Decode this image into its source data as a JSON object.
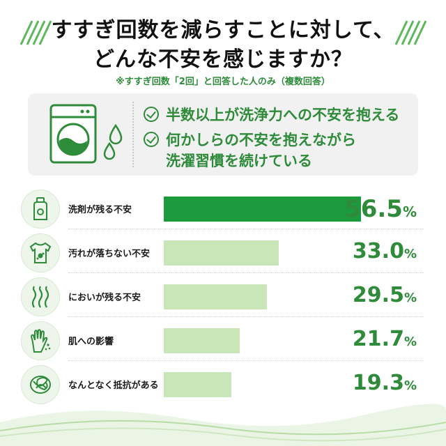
{
  "title": {
    "line1": "すすぎ回数を減らすことに対して、",
    "line2": "どんな不安を感じますか？"
  },
  "note": "※すすぎ回数「2回」と回答した人のみ（複数回答）",
  "summary": {
    "points": [
      "半数以上が洗浄力への不安を抱える",
      "何かしらの不安を抱えながら",
      "洗濯習慣を続けている"
    ]
  },
  "colors": {
    "accent": "#2e8b3a",
    "top_bar": "#1b9a3e",
    "bar": "#c8e6b7",
    "icon_bg": "#eef6ec"
  },
  "chart_data": {
    "type": "bar",
    "orientation": "horizontal",
    "categories": [
      "洗剤が残る不安",
      "汚れが落ちない不安",
      "においが残る不安",
      "肌への影響",
      "なんとなく抵抗がある"
    ],
    "values": [
      56.5,
      33.0,
      29.5,
      21.7,
      19.3
    ],
    "value_labels": [
      "56.5",
      "33.0",
      "29.5",
      "21.7",
      "19.3"
    ],
    "unit": "%",
    "icons": [
      "detergent-bottle-icon",
      "stained-shirt-icon",
      "odor-waves-icon",
      "hand-skin-icon",
      "tangled-lines-icon"
    ],
    "xlim": [
      0,
      62
    ],
    "highlight_index": 0
  }
}
